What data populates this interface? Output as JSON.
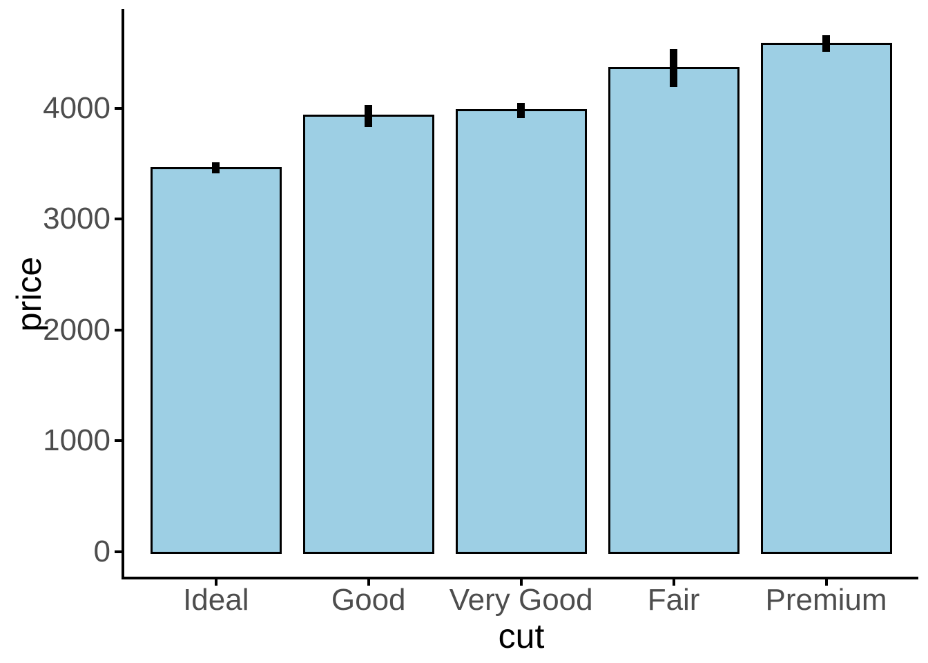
{
  "chart_data": {
    "type": "bar",
    "title": "",
    "xlabel": "cut",
    "ylabel": "price",
    "categories": [
      "Ideal",
      "Good",
      "Very Good",
      "Fair",
      "Premium"
    ],
    "values": [
      3460,
      3930,
      3980,
      4360,
      4580
    ],
    "error_bars": {
      "kind": "confidence interval",
      "low": [
        3410,
        3830,
        3910,
        4190,
        4510
      ],
      "high": [
        3510,
        4030,
        4050,
        4530,
        4660
      ]
    },
    "yticks": [
      0,
      1000,
      2000,
      3000,
      4000
    ],
    "ylim": [
      0,
      4870
    ],
    "grid": false,
    "legend": false,
    "bar_fill": "#9DCFE4",
    "bar_border": "#000000",
    "errorbar_color": "#000000",
    "axis_line_color": "#000000",
    "axis_text_color": "#4D4D4D",
    "axis_title_color": "#000000"
  }
}
